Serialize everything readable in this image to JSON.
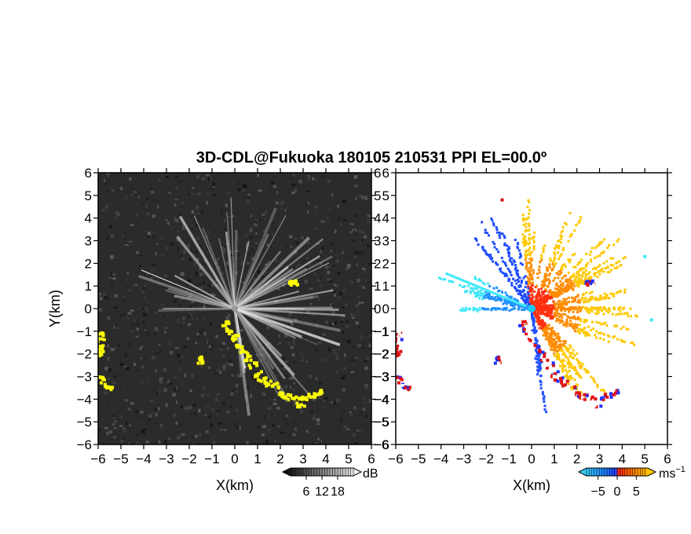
{
  "figure": {
    "title": "3D-CDL@Fukuoka 180105 210531 PPI EL=00.0º"
  },
  "chart_data": [
    {
      "type": "heatmap",
      "panel": "left",
      "quantity": "backscatter intensity",
      "xlabel": "X(km)",
      "ylabel": "Y(km)",
      "xlim": [
        -6,
        6
      ],
      "ylim": [
        -6,
        6
      ],
      "xticks": [
        "-6",
        "-5",
        "-4",
        "-3",
        "-2",
        "-1",
        "0",
        "1",
        "2",
        "3",
        "4",
        "5",
        "6"
      ],
      "yticks": [
        "-6",
        "-5",
        "-4",
        "-3",
        "-2",
        "-1",
        "0",
        "1",
        "2",
        "3",
        "4",
        "5",
        "6"
      ],
      "background": "#2b2b2b",
      "highlight_color": "#ffff00",
      "colorbar": {
        "unit": "dB",
        "ticks": [
          "6",
          "12",
          "18"
        ],
        "tick_values": [
          6,
          12,
          18
        ],
        "range": [
          0,
          24
        ],
        "colors": [
          "#000000",
          "#ffffff"
        ]
      }
    },
    {
      "type": "heatmap",
      "panel": "right",
      "quantity": "radial velocity",
      "xlabel": "X(km)",
      "ylabel": "",
      "xlim": [
        -6,
        6
      ],
      "ylim": [
        -6,
        6
      ],
      "xticks": [
        "-6",
        "-5",
        "-4",
        "-3",
        "-2",
        "-1",
        "0",
        "1",
        "2",
        "3",
        "4",
        "5",
        "6"
      ],
      "yticks": [
        "-6",
        "-5",
        "-4",
        "-3",
        "-2",
        "-1",
        "0",
        "1",
        "2",
        "3",
        "4",
        "5",
        "6"
      ],
      "background": "#ffffff",
      "colorbar": {
        "unit": "ms",
        "unit_exponent": "−1",
        "ticks": [
          "−5",
          "0",
          "5"
        ],
        "tick_values": [
          -5,
          0,
          5
        ],
        "range": [
          -8,
          8
        ],
        "colors": [
          "#40e0f0",
          "#1e40ff",
          "#ff2000",
          "#ff8c00",
          "#ffe000"
        ]
      }
    }
  ]
}
